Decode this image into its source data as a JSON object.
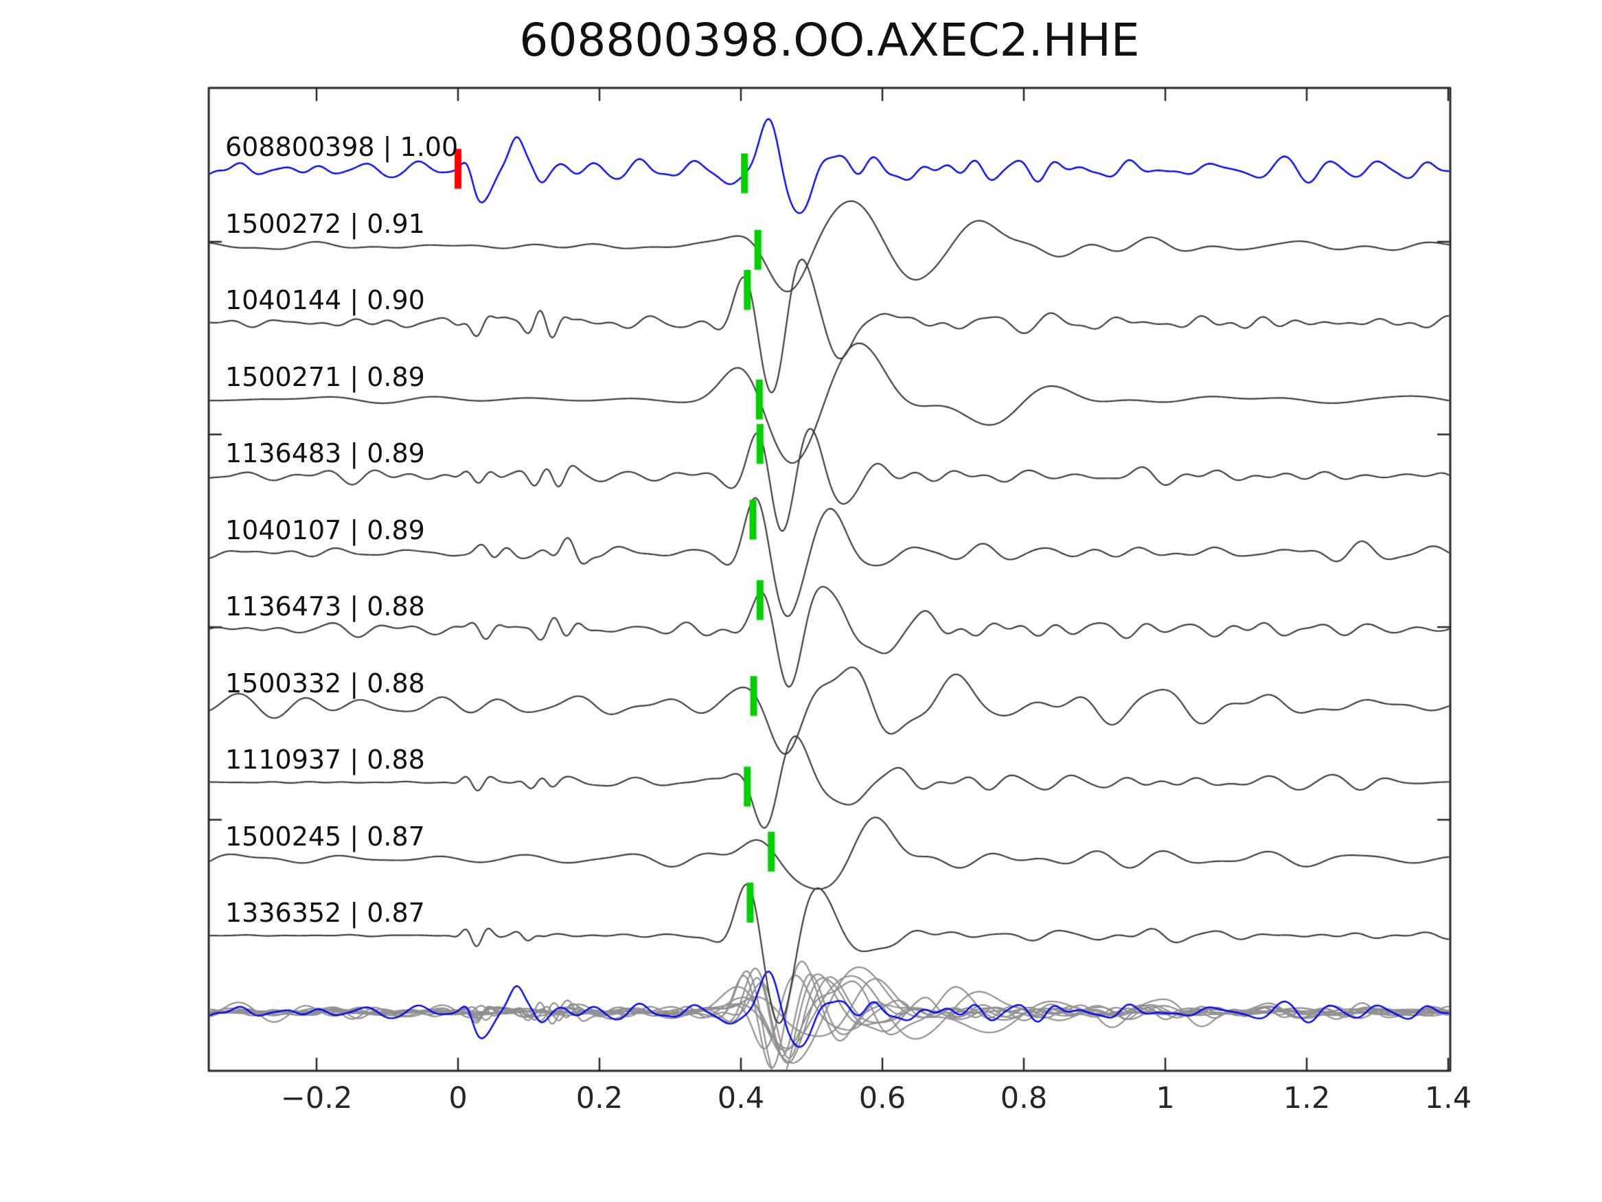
{
  "figure": {
    "title": "608800398.OO.AXEC2.HHE"
  },
  "chart_data": {
    "type": "line",
    "title": "608800398.OO.AXEC2.HHE",
    "description": "Seismic template-matching waveform comparison: template trace (blue) and 10 matched detection traces (dark gray), each labeled 'event_id | correlation'. Green bars mark pick times, red bar marks time zero on the template. Bottom row overlays all traces (gray) with the template (blue).",
    "x_range": [
      -0.353,
      1.403
    ],
    "x_tick_values": [
      -0.2,
      0,
      0.2,
      0.4,
      0.6,
      0.8,
      1,
      1.2,
      1.4
    ],
    "x_tick_labels": [
      "−0.2",
      "0",
      "0.2",
      "0.4",
      "0.6",
      "0.8",
      "1",
      "1.2",
      "1.4"
    ],
    "colors": {
      "template": "#0000ff",
      "match": "#3d3d3d",
      "overlay_gray": "#909090",
      "pick_marker": "#00d000",
      "origin_marker": "#ff0000",
      "axis": "#262626",
      "text": "#111111"
    },
    "overlay": {
      "note": "all traces overlaid on shared baseline at bottom row",
      "scale": 0.8
    },
    "traces": [
      {
        "id": "608800398",
        "cc": "1.00",
        "label": "608800398 | 1.00",
        "role": "template",
        "pick_time": 0.405,
        "origin_time": 0.0,
        "synth": {
          "seed": 101,
          "noise": [
            10,
            26
          ],
          "env": [
            [
              -0.36,
              13
            ],
            [
              0.35,
              15
            ],
            [
              0.42,
              20
            ],
            [
              0.7,
              24
            ],
            [
              1.41,
              21
            ]
          ],
          "burst": {
            "t0": 0.0,
            "t1": 0.12,
            "amp": 10,
            "f": 30
          },
          "wavelets": [
            {
              "tc": 0.036,
              "f": 13,
              "w": 0.026,
              "A": 55,
              "ph": -1.5708
            },
            {
              "tc": 0.085,
              "f": 12,
              "w": 0.03,
              "A": 45,
              "ph": 1.5708
            },
            {
              "tc": 0.44,
              "f": 10,
              "w": 0.05,
              "A": 55,
              "ph": 1.5708
            },
            {
              "tc": 0.48,
              "f": 9,
              "w": 0.05,
              "A": 35,
              "ph": -1.5708
            },
            {
              "tc": 0.56,
              "f": 9,
              "w": 0.08,
              "A": 22,
              "ph": 1.5708
            }
          ]
        }
      },
      {
        "id": "1500272",
        "cc": "0.91",
        "label": "1500272 | 0.91",
        "role": "match",
        "pick_time": 0.424,
        "synth": {
          "seed": 202,
          "noise": [
            5,
            13
          ],
          "env": [
            [
              -0.36,
              8
            ],
            [
              0.35,
              8
            ],
            [
              0.6,
              8
            ],
            [
              0.65,
              15
            ],
            [
              0.8,
              17
            ],
            [
              1.41,
              12
            ]
          ],
          "burst": null,
          "wavelets": [
            {
              "tc": 0.465,
              "f": 6,
              "w": 0.07,
              "A": 50,
              "ph": -1.5708
            },
            {
              "tc": 0.558,
              "f": 5,
              "w": 0.08,
              "A": 55,
              "ph": 1.5708
            },
            {
              "tc": 0.66,
              "f": 5,
              "w": 0.06,
              "A": 20,
              "ph": -1.5708
            },
            {
              "tc": 0.75,
              "f": 4,
              "w": 0.1,
              "A": 25,
              "ph": 1.5708
            }
          ]
        }
      },
      {
        "id": "1040144",
        "cc": "0.90",
        "label": "1040144 | 0.90",
        "role": "match",
        "pick_time": 0.409,
        "synth": {
          "seed": 303,
          "noise": [
            9,
            24
          ],
          "env": [
            [
              -0.36,
              9
            ],
            [
              -0.01,
              9
            ],
            [
              0.01,
              13
            ],
            [
              0.2,
              13
            ],
            [
              0.3,
              12
            ],
            [
              0.55,
              13
            ],
            [
              0.68,
              20
            ],
            [
              1.41,
              16
            ]
          ],
          "burst": {
            "t0": 0.0,
            "t1": 0.17,
            "amp": 20,
            "f": 28
          },
          "wavelets": [
            {
              "tc": 0.408,
              "f": 11,
              "w": 0.035,
              "A": 42,
              "ph": 1.5708
            },
            {
              "tc": 0.443,
              "f": 10,
              "w": 0.05,
              "A": 72,
              "ph": -1.5708
            },
            {
              "tc": 0.49,
              "f": 9,
              "w": 0.05,
              "A": 48,
              "ph": 1.5708
            },
            {
              "tc": 0.545,
              "f": 8,
              "w": 0.07,
              "A": 35,
              "ph": -1.5708
            }
          ]
        }
      },
      {
        "id": "1500271",
        "cc": "0.89",
        "label": "1500271 | 0.89",
        "role": "match",
        "pick_time": 0.426,
        "synth": {
          "seed": 404,
          "noise": [
            4,
            9
          ],
          "env": [
            [
              -0.36,
              8
            ],
            [
              0.35,
              8
            ],
            [
              0.65,
              10
            ],
            [
              0.9,
              14
            ],
            [
              1.41,
              11
            ]
          ],
          "burst": null,
          "wavelets": [
            {
              "tc": 0.4,
              "f": 6,
              "w": 0.05,
              "A": 18,
              "ph": 1.5708
            },
            {
              "tc": 0.47,
              "f": 5.2,
              "w": 0.08,
              "A": 72,
              "ph": -1.5708
            },
            {
              "tc": 0.572,
              "f": 4.8,
              "w": 0.08,
              "A": 60,
              "ph": 1.5708
            },
            {
              "tc": 0.75,
              "f": 3.8,
              "w": 0.11,
              "A": 30,
              "ph": -1.5708
            }
          ]
        }
      },
      {
        "id": "1136483",
        "cc": "0.89",
        "label": "1136483 | 0.89",
        "role": "match",
        "pick_time": 0.427,
        "synth": {
          "seed": 505,
          "noise": [
            9,
            22
          ],
          "env": [
            [
              -0.36,
              9
            ],
            [
              0.22,
              11
            ],
            [
              0.55,
              12
            ],
            [
              0.7,
              17
            ],
            [
              1.41,
              13
            ]
          ],
          "burst": {
            "t0": 0.0,
            "t1": 0.18,
            "amp": 18,
            "f": 26
          },
          "wavelets": [
            {
              "tc": 0.428,
              "f": 11,
              "w": 0.033,
              "A": 40,
              "ph": 1.5708
            },
            {
              "tc": 0.458,
              "f": 10,
              "w": 0.045,
              "A": 58,
              "ph": -1.5708
            },
            {
              "tc": 0.5,
              "f": 9,
              "w": 0.05,
              "A": 42,
              "ph": 1.5708
            },
            {
              "tc": 0.54,
              "f": 8,
              "w": 0.06,
              "A": 30,
              "ph": -1.5708
            }
          ]
        }
      },
      {
        "id": "1040107",
        "cc": "0.89",
        "label": "1040107 | 0.89",
        "role": "match",
        "pick_time": 0.417,
        "synth": {
          "seed": 606,
          "noise": [
            8,
            20
          ],
          "env": [
            [
              -0.36,
              11
            ],
            [
              0.24,
              12
            ],
            [
              0.55,
              13
            ],
            [
              0.7,
              18
            ],
            [
              1.41,
              14
            ]
          ],
          "burst": {
            "t0": 0.02,
            "t1": 0.2,
            "amp": 17,
            "f": 24
          },
          "wavelets": [
            {
              "tc": 0.42,
              "f": 10,
              "w": 0.04,
              "A": 48,
              "ph": 1.5708
            },
            {
              "tc": 0.468,
              "f": 8.5,
              "w": 0.055,
              "A": 65,
              "ph": -1.5708
            },
            {
              "tc": 0.53,
              "f": 7.5,
              "w": 0.065,
              "A": 42,
              "ph": 1.5708
            }
          ]
        }
      },
      {
        "id": "1136473",
        "cc": "0.88",
        "label": "1136473 | 0.88",
        "role": "match",
        "pick_time": 0.427,
        "synth": {
          "seed": 707,
          "noise": [
            9,
            22
          ],
          "env": [
            [
              -0.36,
              8
            ],
            [
              0.24,
              11
            ],
            [
              0.55,
              12
            ],
            [
              0.7,
              17
            ],
            [
              1.41,
              14
            ]
          ],
          "burst": {
            "t0": 0.01,
            "t1": 0.19,
            "amp": 18,
            "f": 26
          },
          "wavelets": [
            {
              "tc": 0.436,
              "f": 11,
              "w": 0.035,
              "A": 45,
              "ph": 1.5708
            },
            {
              "tc": 0.466,
              "f": 9.5,
              "w": 0.05,
              "A": 60,
              "ph": -1.5708
            },
            {
              "tc": 0.518,
              "f": 8,
              "w": 0.06,
              "A": 40,
              "ph": 1.5708
            },
            {
              "tc": 0.6,
              "f": 7,
              "w": 0.08,
              "A": 25,
              "ph": -1.5708
            }
          ]
        }
      },
      {
        "id": "1500332",
        "cc": "0.88",
        "label": "1500332 | 0.88",
        "role": "match",
        "pick_time": 0.418,
        "synth": {
          "seed": 808,
          "noise": [
            6,
            17
          ],
          "env": [
            [
              -0.36,
              20
            ],
            [
              0.4,
              22
            ],
            [
              0.6,
              28
            ],
            [
              0.9,
              26
            ],
            [
              1.41,
              24
            ]
          ],
          "burst": null,
          "wavelets": [
            {
              "tc": 0.46,
              "f": 7,
              "w": 0.075,
              "A": 45,
              "ph": -1.5708
            },
            {
              "tc": 0.55,
              "f": 6,
              "w": 0.08,
              "A": 40,
              "ph": 1.5708
            },
            {
              "tc": 0.72,
              "f": 5,
              "w": 0.09,
              "A": 28,
              "ph": 1.5708
            }
          ]
        }
      },
      {
        "id": "1110937",
        "cc": "0.88",
        "label": "1110937 | 0.88",
        "role": "match",
        "pick_time": 0.409,
        "synth": {
          "seed": 909,
          "noise": [
            9,
            20
          ],
          "env": [
            [
              -0.36,
              2
            ],
            [
              -0.02,
              2
            ],
            [
              0.02,
              8
            ],
            [
              0.2,
              8
            ],
            [
              0.5,
              9
            ],
            [
              0.65,
              12
            ],
            [
              1.41,
              9
            ]
          ],
          "burst": {
            "t0": 0.0,
            "t1": 0.14,
            "amp": 16,
            "f": 27
          },
          "wavelets": [
            {
              "tc": 0.432,
              "f": 10,
              "w": 0.045,
              "A": 55,
              "ph": -1.5708
            },
            {
              "tc": 0.478,
              "f": 9,
              "w": 0.05,
              "A": 45,
              "ph": 1.5708
            },
            {
              "tc": 0.55,
              "f": 7,
              "w": 0.07,
              "A": 28,
              "ph": -1.5708
            }
          ]
        }
      },
      {
        "id": "1500245",
        "cc": "0.87",
        "label": "1500245 | 0.87",
        "role": "match",
        "pick_time": 0.443,
        "synth": {
          "seed": 1010,
          "noise": [
            6,
            14
          ],
          "env": [
            [
              -0.36,
              12
            ],
            [
              0.4,
              12
            ],
            [
              0.75,
              16
            ],
            [
              1.41,
              12
            ]
          ],
          "burst": null,
          "wavelets": [
            {
              "tc": 0.42,
              "f": 6,
              "w": 0.05,
              "A": 15,
              "ph": 1.5708
            },
            {
              "tc": 0.5,
              "f": 5,
              "w": 0.09,
              "A": 42,
              "ph": -1.5708
            },
            {
              "tc": 0.6,
              "f": 4.5,
              "w": 0.07,
              "A": 38,
              "ph": 1.5708
            }
          ]
        }
      },
      {
        "id": "1336352",
        "cc": "0.87",
        "label": "1336352 | 0.87",
        "role": "match",
        "pick_time": 0.413,
        "synth": {
          "seed": 1111,
          "noise": [
            8,
            20
          ],
          "env": [
            [
              -0.36,
              1.5
            ],
            [
              -0.02,
              1.5
            ],
            [
              0.02,
              6
            ],
            [
              0.45,
              6
            ],
            [
              0.6,
              10
            ],
            [
              1.41,
              8
            ]
          ],
          "burst": {
            "t0": 0.0,
            "t1": 0.11,
            "amp": 20,
            "f": 28
          },
          "wavelets": [
            {
              "tc": 0.408,
              "f": 10,
              "w": 0.038,
              "A": 52,
              "ph": 1.5708
            },
            {
              "tc": 0.455,
              "f": 8,
              "w": 0.045,
              "A": 105,
              "ph": -1.5708
            },
            {
              "tc": 0.515,
              "f": 7,
              "w": 0.055,
              "A": 42,
              "ph": 1.5708
            },
            {
              "tc": 0.59,
              "f": 6,
              "w": 0.07,
              "A": 20,
              "ph": -1.5708
            }
          ]
        }
      }
    ]
  }
}
